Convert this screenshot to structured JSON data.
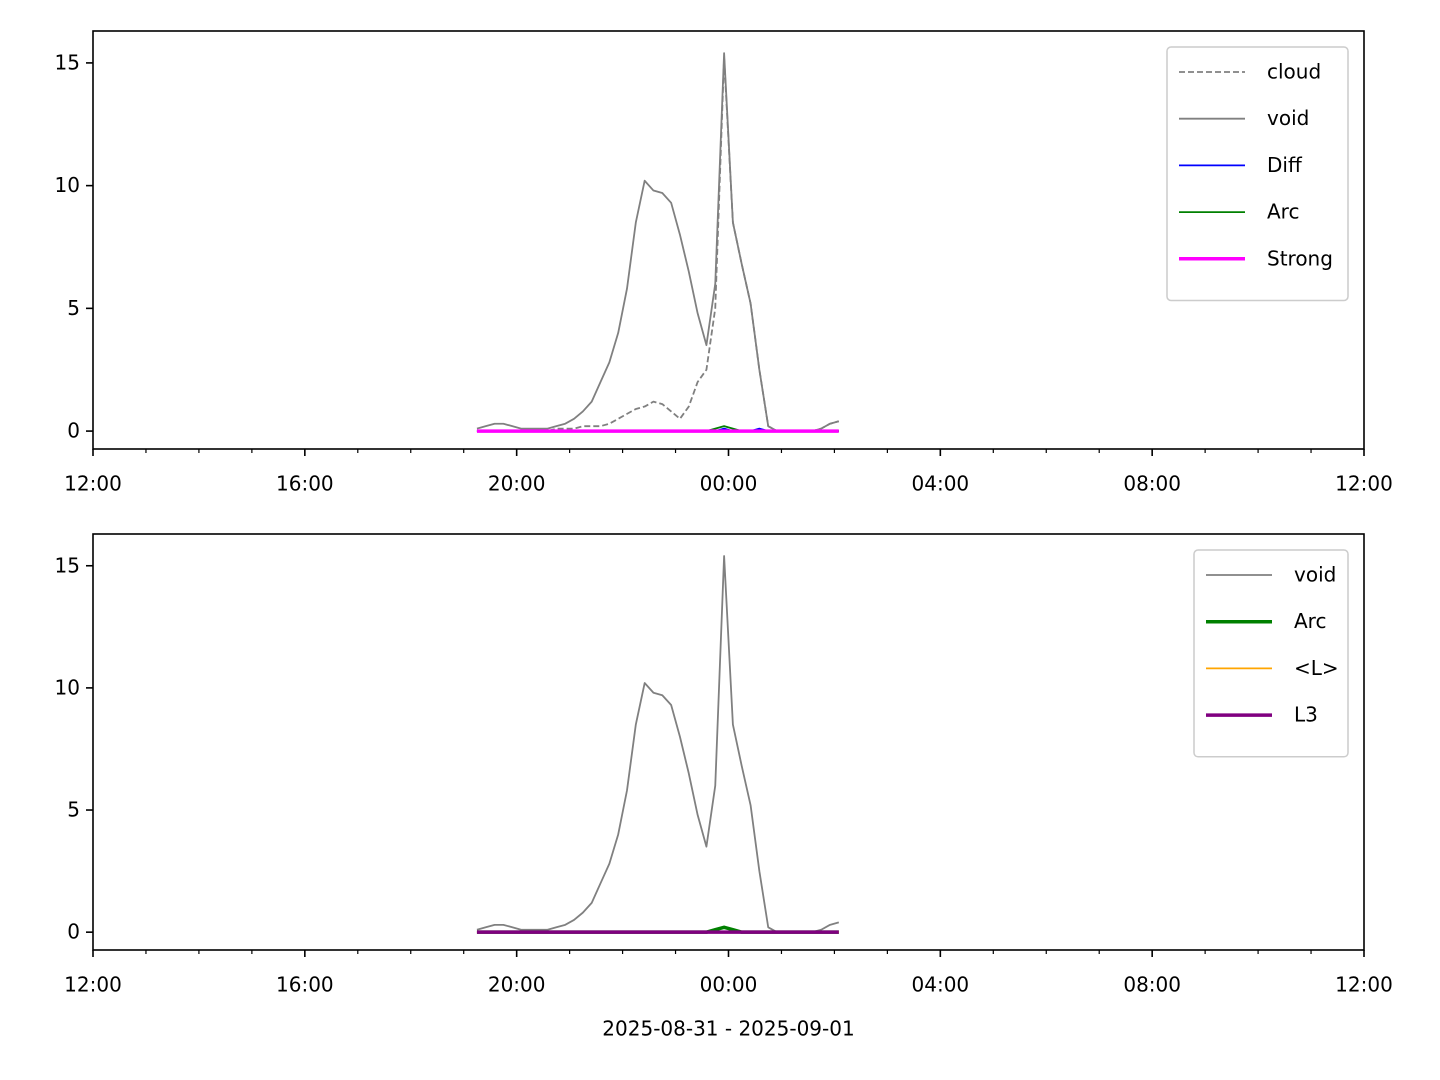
{
  "chart_data": [
    {
      "type": "line",
      "x": [
        19.25,
        19.417,
        19.583,
        19.75,
        19.917,
        20.083,
        20.25,
        20.417,
        20.583,
        20.75,
        20.917,
        21.083,
        21.25,
        21.417,
        21.583,
        21.75,
        21.917,
        22.083,
        22.25,
        22.417,
        22.583,
        22.75,
        22.917,
        23.083,
        23.25,
        23.417,
        23.583,
        23.75,
        23.917,
        24.083,
        24.25,
        24.417,
        24.583,
        24.75,
        24.917,
        25.083,
        25.25,
        25.417,
        25.583,
        25.75,
        25.917,
        26.083
      ],
      "series": [
        {
          "name": "cloud",
          "color": "#808080",
          "style": "dashed",
          "width": "thin",
          "values": [
            0,
            0,
            0,
            0,
            0,
            0,
            0,
            0,
            0,
            0.1,
            0.1,
            0.1,
            0.2,
            0.2,
            0.2,
            0.3,
            0.5,
            0.7,
            0.9,
            1.0,
            1.2,
            1.1,
            0.8,
            0.5,
            1.0,
            2.0,
            2.5,
            5.0,
            15.2,
            8.5,
            6.8,
            5.2,
            2.5,
            0.2,
            0,
            0,
            0,
            0,
            0,
            0.1,
            0.3,
            0.4
          ]
        },
        {
          "name": "void",
          "color": "#808080",
          "style": "solid",
          "width": "thin",
          "values": [
            0.1,
            0.2,
            0.3,
            0.3,
            0.2,
            0.1,
            0.1,
            0.1,
            0.1,
            0.2,
            0.3,
            0.5,
            0.8,
            1.2,
            2.0,
            2.8,
            4.0,
            5.8,
            8.5,
            10.2,
            9.8,
            9.7,
            9.3,
            8.0,
            6.5,
            4.8,
            3.5,
            6.0,
            15.4,
            8.5,
            6.8,
            5.2,
            2.5,
            0.2,
            0,
            0,
            0,
            0,
            0,
            0.1,
            0.3,
            0.4
          ]
        },
        {
          "name": "Diff",
          "color": "#0000ff",
          "style": "solid",
          "width": "thin",
          "values": [
            0,
            0,
            0,
            0,
            0,
            0,
            0,
            0,
            0,
            0,
            0,
            0,
            0,
            0,
            0,
            0,
            0,
            0,
            0,
            0,
            0,
            0,
            0,
            0,
            0,
            0,
            0,
            0,
            0.1,
            0,
            0,
            0,
            0.1,
            0,
            0,
            0,
            0,
            0,
            0,
            0,
            0,
            0
          ]
        },
        {
          "name": "Arc",
          "color": "#008000",
          "style": "solid",
          "width": "thin",
          "values": [
            0,
            0,
            0,
            0,
            0,
            0,
            0,
            0,
            0,
            0,
            0,
            0,
            0,
            0,
            0,
            0,
            0,
            0,
            0,
            0,
            0,
            0,
            0,
            0,
            0,
            0,
            0,
            0.1,
            0.2,
            0.1,
            0,
            0,
            0,
            0,
            0,
            0,
            0,
            0,
            0,
            0,
            0,
            0
          ]
        },
        {
          "name": "Strong",
          "color": "#ff00ff",
          "style": "solid",
          "width": "thick",
          "values": [
            0,
            0,
            0,
            0,
            0,
            0,
            0,
            0,
            0,
            0,
            0,
            0,
            0,
            0,
            0,
            0,
            0,
            0,
            0,
            0,
            0,
            0,
            0,
            0,
            0,
            0,
            0,
            0,
            0,
            0,
            0,
            0,
            0,
            0,
            0,
            0,
            0,
            0,
            0,
            0,
            0,
            0
          ]
        }
      ],
      "xlim": [
        12,
        36
      ],
      "xticks": [
        {
          "value": 12,
          "label": "12:00"
        },
        {
          "value": 16,
          "label": "16:00"
        },
        {
          "value": 20,
          "label": "20:00"
        },
        {
          "value": 24,
          "label": "00:00"
        },
        {
          "value": 28,
          "label": "04:00"
        },
        {
          "value": 32,
          "label": "08:00"
        },
        {
          "value": 36,
          "label": "12:00"
        }
      ],
      "xminorticks": [
        13,
        14,
        15,
        17,
        18,
        19,
        21,
        22,
        23,
        25,
        26,
        27,
        29,
        30,
        31,
        33,
        34,
        35
      ],
      "ylim": [
        -0.73,
        16.3
      ],
      "yticks": [
        0,
        5,
        10,
        15
      ],
      "legend": "upper right"
    },
    {
      "type": "line",
      "x": [
        19.25,
        19.417,
        19.583,
        19.75,
        19.917,
        20.083,
        20.25,
        20.417,
        20.583,
        20.75,
        20.917,
        21.083,
        21.25,
        21.417,
        21.583,
        21.75,
        21.917,
        22.083,
        22.25,
        22.417,
        22.583,
        22.75,
        22.917,
        23.083,
        23.25,
        23.417,
        23.583,
        23.75,
        23.917,
        24.083,
        24.25,
        24.417,
        24.583,
        24.75,
        24.917,
        25.083,
        25.25,
        25.417,
        25.583,
        25.75,
        25.917,
        26.083
      ],
      "series": [
        {
          "name": "void",
          "color": "#808080",
          "style": "solid",
          "width": "thin",
          "values": [
            0.1,
            0.2,
            0.3,
            0.3,
            0.2,
            0.1,
            0.1,
            0.1,
            0.1,
            0.2,
            0.3,
            0.5,
            0.8,
            1.2,
            2.0,
            2.8,
            4.0,
            5.8,
            8.5,
            10.2,
            9.8,
            9.7,
            9.3,
            8.0,
            6.5,
            4.8,
            3.5,
            6.0,
            15.4,
            8.5,
            6.8,
            5.2,
            2.5,
            0.2,
            0,
            0,
            0,
            0,
            0,
            0.1,
            0.3,
            0.4
          ]
        },
        {
          "name": "Arc",
          "color": "#008000",
          "style": "solid",
          "width": "thick",
          "values": [
            0,
            0,
            0,
            0,
            0,
            0,
            0,
            0,
            0,
            0,
            0,
            0,
            0,
            0,
            0,
            0,
            0,
            0,
            0,
            0,
            0,
            0,
            0,
            0,
            0,
            0,
            0,
            0.1,
            0.2,
            0.1,
            0,
            0,
            0,
            0,
            0,
            0,
            0,
            0,
            0,
            0,
            0,
            0
          ]
        },
        {
          "name": "<L>",
          "color": "#ffa500",
          "style": "solid",
          "width": "thin",
          "values": [
            0,
            0,
            0,
            0,
            0,
            0,
            0,
            0,
            0,
            0,
            0,
            0,
            0,
            0,
            0,
            0,
            0,
            0,
            0,
            0,
            0,
            0,
            0,
            0,
            0,
            0,
            0,
            0,
            0,
            0,
            0,
            0,
            0,
            0,
            0,
            0,
            0,
            0,
            0,
            0,
            0,
            0
          ]
        },
        {
          "name": "L3",
          "color": "#800080",
          "style": "solid",
          "width": "thick",
          "values": [
            0,
            0,
            0,
            0,
            0,
            0,
            0,
            0,
            0,
            0,
            0,
            0,
            0,
            0,
            0,
            0,
            0,
            0,
            0,
            0,
            0,
            0,
            0,
            0,
            0,
            0,
            0,
            0,
            0,
            0,
            0,
            0,
            0,
            0,
            0,
            0,
            0,
            0,
            0,
            0,
            0,
            0
          ]
        }
      ],
      "xlim": [
        12,
        36
      ],
      "xticks": [
        {
          "value": 12,
          "label": "12:00"
        },
        {
          "value": 16,
          "label": "16:00"
        },
        {
          "value": 20,
          "label": "20:00"
        },
        {
          "value": 24,
          "label": "00:00"
        },
        {
          "value": 28,
          "label": "04:00"
        },
        {
          "value": 32,
          "label": "08:00"
        },
        {
          "value": 36,
          "label": "12:00"
        }
      ],
      "xminorticks": [
        13,
        14,
        15,
        17,
        18,
        19,
        21,
        22,
        23,
        25,
        26,
        27,
        29,
        30,
        31,
        33,
        34,
        35
      ],
      "ylim": [
        -0.73,
        16.3
      ],
      "yticks": [
        0,
        5,
        10,
        15
      ],
      "legend": "upper right",
      "xlabel": "2025-08-31 - 2025-09-01"
    }
  ]
}
